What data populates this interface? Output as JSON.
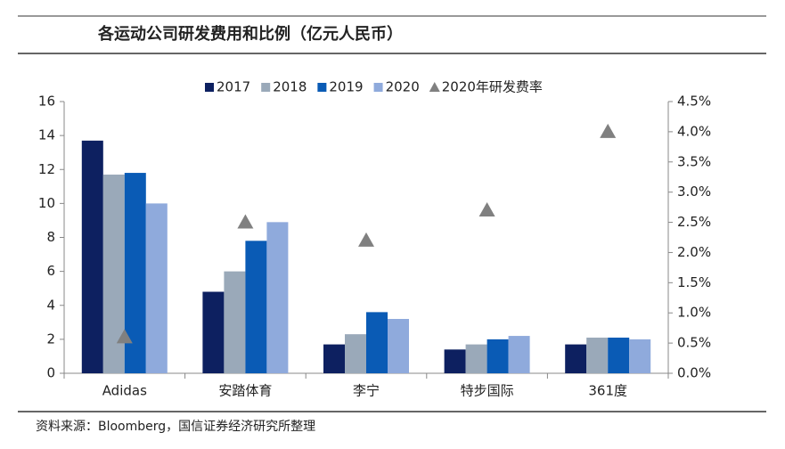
{
  "chart_data": {
    "type": "bar",
    "title": "各运动公司研发费用和比例（亿元人民币）",
    "source": "资料来源：Bloomberg，国信证券经济研究所整理",
    "categories": [
      "Adidas",
      "安踏体育",
      "李宁",
      "特步国际",
      "361度"
    ],
    "series": [
      {
        "name": "2017",
        "color": "#0d2060",
        "values": [
          13.7,
          4.8,
          1.7,
          1.4,
          1.7
        ]
      },
      {
        "name": "2018",
        "color": "#9aa9b9",
        "values": [
          11.7,
          6.0,
          2.3,
          1.7,
          2.1
        ]
      },
      {
        "name": "2019",
        "color": "#0a5bb5",
        "values": [
          11.8,
          7.8,
          3.6,
          2.0,
          2.1
        ]
      },
      {
        "name": "2020",
        "color": "#8faadc",
        "values": [
          10.0,
          8.9,
          3.2,
          2.2,
          2.0
        ]
      },
      {
        "name": "2020年研发费率",
        "color": "#808080",
        "type": "scatter",
        "marker": "triangle",
        "axis": "y2",
        "values": [
          0.6,
          2.5,
          2.2,
          2.7,
          4.0
        ]
      }
    ],
    "ylim": [
      0,
      16
    ],
    "yticks": [
      0,
      2,
      4,
      6,
      8,
      10,
      12,
      14,
      16
    ],
    "y2lim": [
      0,
      4.5
    ],
    "y2ticks": [
      {
        "value": 0,
        "label": "0.0%"
      },
      {
        "value": 0.5,
        "label": "0.5%"
      },
      {
        "value": 1,
        "label": "1.0%"
      },
      {
        "value": 1.5,
        "label": "1.5%"
      },
      {
        "value": 2,
        "label": "2.0%"
      },
      {
        "value": 2.5,
        "label": "2.5%"
      },
      {
        "value": 3,
        "label": "3.0%"
      },
      {
        "value": 3.5,
        "label": "3.5%"
      },
      {
        "value": 4,
        "label": "4.0%"
      },
      {
        "value": 4.5,
        "label": "4.5%"
      }
    ],
    "legend": "top",
    "grid": false
  }
}
